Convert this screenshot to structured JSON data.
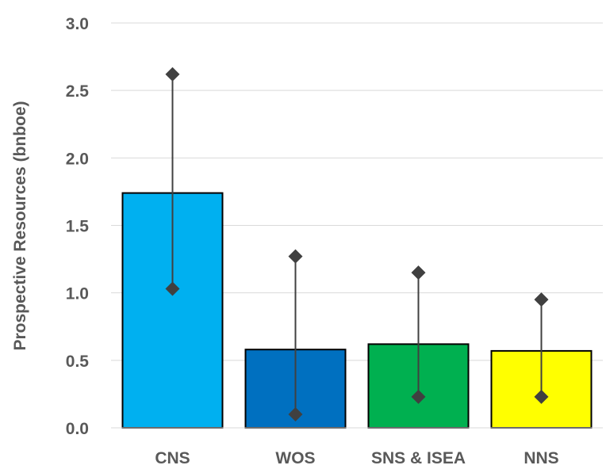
{
  "chart_data": {
    "type": "bar",
    "title": "",
    "xlabel": "",
    "ylabel": "Prospective Resources (bnboe)",
    "ylim": [
      0,
      3.0
    ],
    "yticks": [
      "0.0",
      "0.5",
      "1.0",
      "1.5",
      "2.0",
      "2.5",
      "3.0"
    ],
    "grid": true,
    "categories": [
      "CNS",
      "WOS",
      "SNS & ISEA",
      "NNS"
    ],
    "values": [
      1.74,
      0.58,
      0.62,
      0.57
    ],
    "low": [
      1.03,
      0.1,
      0.23,
      0.23
    ],
    "high": [
      2.62,
      1.27,
      1.15,
      0.95
    ],
    "colors": [
      "#00b0f0",
      "#0070c0",
      "#00b050",
      "#ffff00"
    ],
    "marker_color": "#404040"
  }
}
